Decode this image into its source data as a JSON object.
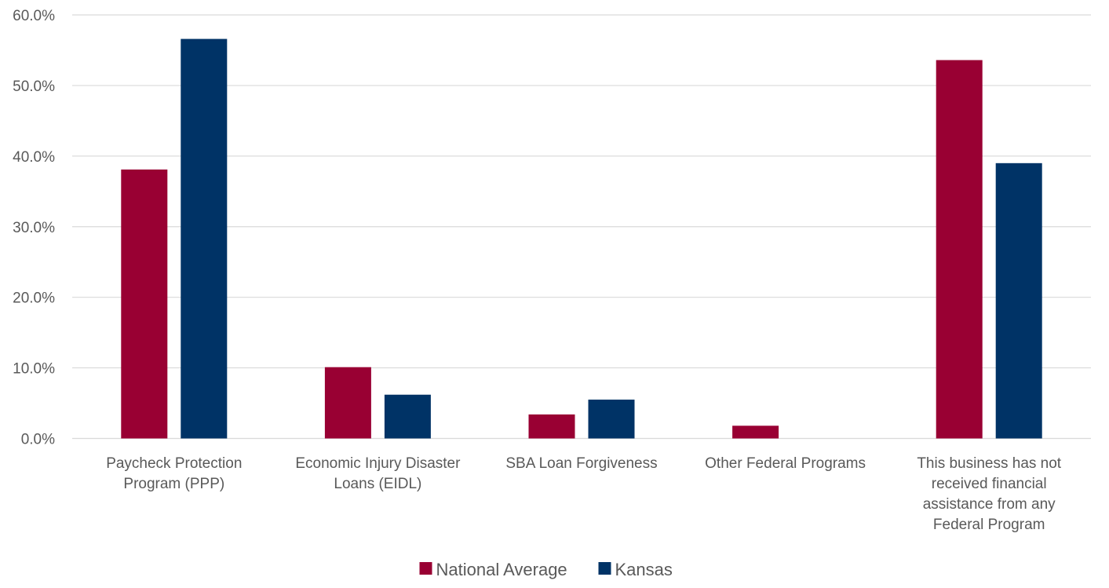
{
  "chart_data": {
    "type": "bar",
    "categories": [
      [
        "Paycheck Protection",
        "Program (PPP)"
      ],
      [
        "Economic Injury Disaster",
        "Loans (EIDL)"
      ],
      [
        "SBA Loan Forgiveness"
      ],
      [
        "Other Federal Programs"
      ],
      [
        "This business has not",
        "received financial",
        "assistance from any",
        "Federal Program"
      ]
    ],
    "series": [
      {
        "name": "National Average",
        "color": "#990033",
        "values": [
          38.1,
          10.1,
          3.4,
          1.8,
          53.6
        ]
      },
      {
        "name": "Kansas",
        "color": "#003366",
        "values": [
          56.6,
          6.2,
          5.5,
          0.0,
          39.0
        ]
      }
    ],
    "ylim": [
      0,
      60
    ],
    "yticks": [
      "0.0%",
      "10.0%",
      "20.0%",
      "30.0%",
      "40.0%",
      "50.0%",
      "60.0%"
    ],
    "ytick_values": [
      0,
      10,
      20,
      30,
      40,
      50,
      60
    ],
    "grid": true,
    "legend_position": "bottom-center",
    "title": "",
    "xlabel": "",
    "ylabel": ""
  }
}
